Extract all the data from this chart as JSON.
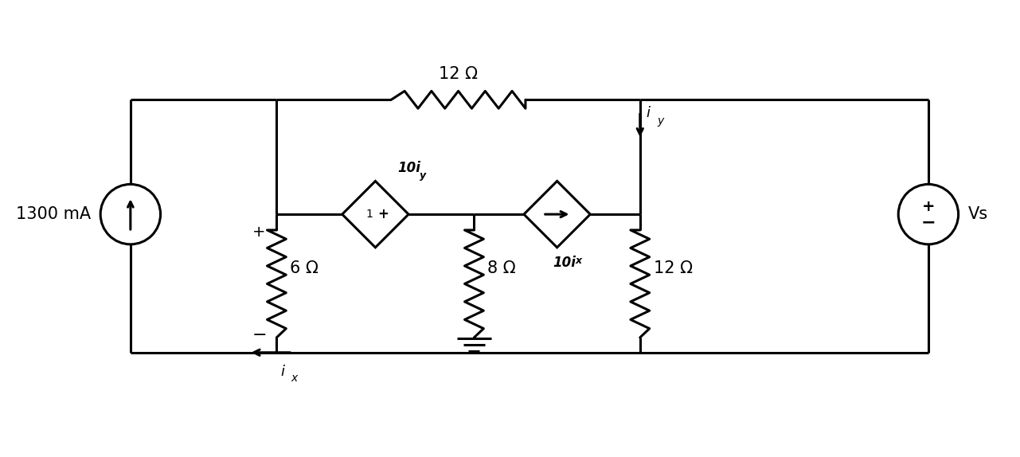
{
  "bg_color": "#ffffff",
  "line_color": "#000000",
  "line_width": 2.2,
  "fig_width": 12.81,
  "fig_height": 5.74,
  "labels": {
    "resistor_top": "12 Ω",
    "resistor_6": "6 Ω",
    "resistor_8": "8 Ω",
    "resistor_12": "12 Ω",
    "current_source": "1300 mA",
    "voltage_source": "Vs",
    "dep_volt": "10i",
    "dep_volt_sub": "y",
    "dep_curr": "10i",
    "dep_curr_sub": "x",
    "ix_label": "i",
    "ix_sub": "x",
    "iy_label": "i",
    "iy_sub": "y"
  }
}
